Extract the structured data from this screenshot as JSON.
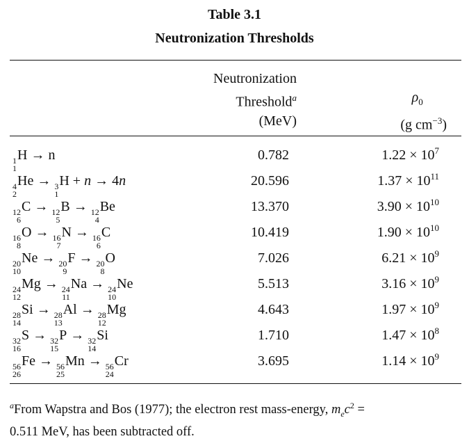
{
  "table": {
    "number_label": "Table 3.1",
    "title": "Neutronization Thresholds",
    "headers": {
      "threshold": [
        "Neutronization",
        "Threshold",
        "(MeV)"
      ],
      "threshold_footnote_mark": "a",
      "rho": [
        "ρ",
        "0",
        "(g cm",
        "−3",
        ")"
      ]
    },
    "rows": [
      {
        "reaction": "1 1 H → n",
        "threshold": "0.782",
        "rho_mantissa": "1.22 × 10",
        "rho_exp": "7"
      },
      {
        "reaction": "4 2 He → 3 1 H + n → 4n",
        "threshold": "20.596",
        "rho_mantissa": "1.37 × 10",
        "rho_exp": "11"
      },
      {
        "reaction": "12 6 C → 12 5 B → 12 4 Be",
        "threshold": "13.370",
        "rho_mantissa": "3.90 × 10",
        "rho_exp": "10"
      },
      {
        "reaction": "16 8 O → 16 7 N → 16 6 C",
        "threshold": "10.419",
        "rho_mantissa": "1.90 × 10",
        "rho_exp": "10"
      },
      {
        "reaction": "20 10 Ne → 20 9 F → 20 8 O",
        "threshold": "7.026",
        "rho_mantissa": "6.21 × 10",
        "rho_exp": "9"
      },
      {
        "reaction": "24 12 Mg → 24 11 Na → 24 10 Ne",
        "threshold": "5.513",
        "rho_mantissa": "3.16 × 10",
        "rho_exp": "9"
      },
      {
        "reaction": "28 14 Si → 28 13 Al → 28 12 Mg",
        "threshold": "4.643",
        "rho_mantissa": "1.97 × 10",
        "rho_exp": "9"
      },
      {
        "reaction": "32 16 S → 32 15 P → 32 14 Si",
        "threshold": "1.710",
        "rho_mantissa": "1.47 × 10",
        "rho_exp": "8"
      },
      {
        "reaction": "56 26 Fe → 56 25 Mn → 56 24 Cr",
        "threshold": "3.695",
        "rho_mantissa": "1.14 × 10",
        "rho_exp": "9"
      }
    ],
    "footnote": {
      "mark": "a",
      "text_1": "From Wapstra and Bos (1977); the electron rest mass-energy, ",
      "var_m": "m",
      "var_e": "e",
      "var_c": "c",
      "power": "2",
      "text_2": " =",
      "text_3": "0.511 MeV, has been subtracted off."
    }
  }
}
